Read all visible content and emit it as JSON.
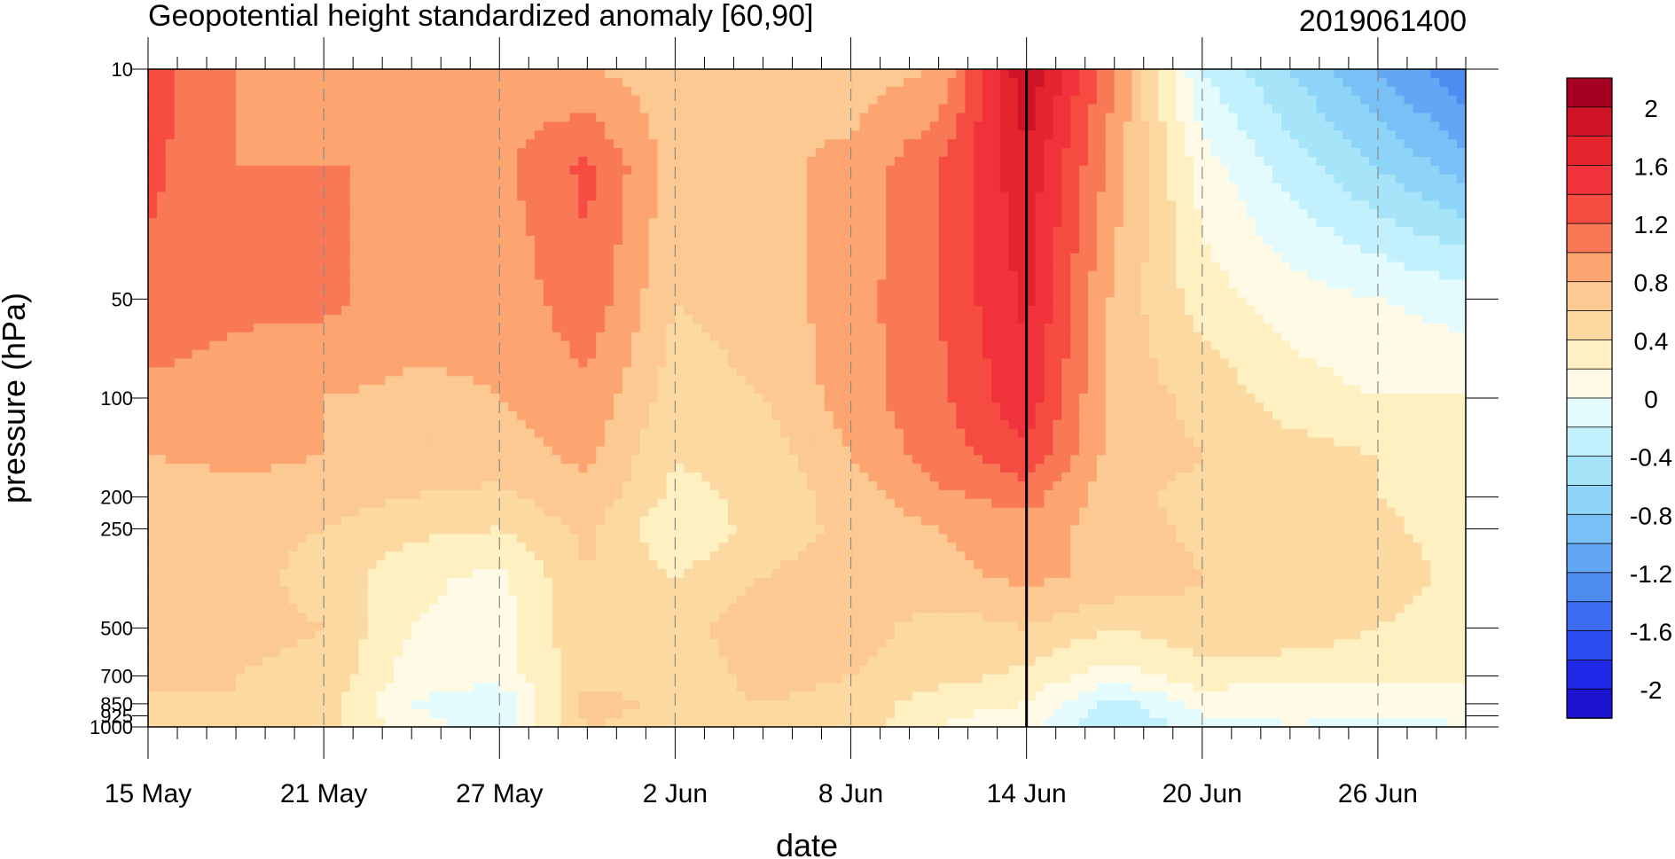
{
  "chart_data": {
    "type": "heatmap",
    "title": "Geopotential height standardized anomaly [60,90]",
    "right_title": "2019061400",
    "xlabel": "date",
    "ylabel": "pressure (hPa)",
    "x_tick_labels": [
      "15 May",
      "21 May",
      "27 May",
      "2 Jun",
      "8 Jun",
      "14 Jun",
      "20 Jun",
      "26 Jun"
    ],
    "x_tick_day_index": [
      0,
      6,
      12,
      18,
      24,
      30,
      36,
      42
    ],
    "x_range_days": [
      0,
      45
    ],
    "y_tick_labels": [
      "10",
      "50",
      "100",
      "200",
      "250",
      "500",
      "700",
      "850",
      "925",
      "1000"
    ],
    "y_tick_values": [
      10,
      50,
      100,
      200,
      250,
      500,
      700,
      850,
      925,
      1000
    ],
    "y_scale": "log",
    "y_range": [
      1000,
      10
    ],
    "current_date_day_index": 30,
    "colorbar": {
      "levels": [
        -2.2,
        -2.0,
        -1.8,
        -1.6,
        -1.4,
        -1.2,
        -1.0,
        -0.8,
        -0.6,
        -0.4,
        -0.2,
        0.0,
        0.2,
        0.4,
        0.6,
        0.8,
        1.0,
        1.2,
        1.4,
        1.6,
        1.8,
        2.0,
        2.2
      ],
      "colors": [
        "#1a12cc",
        "#1e28e6",
        "#2a4cf0",
        "#3d6cf2",
        "#4f8cf2",
        "#62a6f4",
        "#78c0f6",
        "#8ed4f8",
        "#a6e4fa",
        "#c2f0fc",
        "#e4fbfd",
        "#fffae6",
        "#fef0c0",
        "#fdd9a2",
        "#fcc993",
        "#fca571",
        "#f97856",
        "#f54b40",
        "#f0323a",
        "#e6242e",
        "#cf1428",
        "#a50021"
      ],
      "tick_labels": [
        "2",
        "1.6",
        "1.2",
        "0.8",
        "0.4",
        "0",
        "-0.4",
        "-0.8",
        "-1.2",
        "-1.6",
        "-2"
      ],
      "tick_values": [
        2.0,
        1.6,
        1.2,
        0.8,
        0.4,
        0.0,
        -0.4,
        -0.8,
        -1.2,
        -1.6,
        -2.0
      ]
    },
    "grid": {
      "days": [
        0,
        3,
        6,
        9,
        12,
        15,
        18,
        21,
        24,
        27,
        30,
        33,
        36,
        39,
        42,
        45
      ],
      "levels": [
        10,
        20,
        50,
        100,
        150,
        200,
        250,
        350,
        500,
        700,
        850,
        1000
      ],
      "values": [
        [
          1.3,
          1.0,
          0.9,
          1.0,
          0.9,
          0.8,
          0.7,
          0.8,
          0.7,
          0.8,
          2.0,
          1.0,
          -0.2,
          -0.6,
          -1.0,
          -1.4
        ],
        [
          1.25,
          1.0,
          1.0,
          1.0,
          0.95,
          1.25,
          0.7,
          0.75,
          0.85,
          1.2,
          1.75,
          0.9,
          0.1,
          -0.3,
          -0.6,
          -0.9
        ],
        [
          1.15,
          1.05,
          1.05,
          0.9,
          0.85,
          1.15,
          0.6,
          0.7,
          0.9,
          1.2,
          1.65,
          0.75,
          0.3,
          0.1,
          0.0,
          -0.1
        ],
        [
          0.95,
          0.9,
          0.8,
          0.75,
          0.8,
          0.95,
          0.5,
          0.6,
          0.9,
          1.15,
          1.55,
          0.7,
          0.55,
          0.3,
          0.2,
          0.2
        ],
        [
          0.8,
          0.85,
          0.8,
          0.7,
          0.7,
          0.85,
          0.4,
          0.5,
          0.8,
          1.1,
          1.35,
          0.7,
          0.6,
          0.5,
          0.4,
          0.3
        ],
        [
          0.65,
          0.75,
          0.7,
          0.6,
          0.55,
          0.75,
          0.35,
          0.45,
          0.7,
          0.95,
          1.1,
          0.65,
          0.55,
          0.5,
          0.4,
          0.3
        ],
        [
          0.6,
          0.65,
          0.6,
          0.45,
          0.4,
          0.65,
          0.2,
          0.5,
          0.65,
          0.8,
          0.9,
          0.7,
          0.55,
          0.55,
          0.45,
          0.3
        ],
        [
          0.6,
          0.65,
          0.55,
          0.25,
          0.15,
          0.6,
          0.4,
          0.6,
          0.7,
          0.75,
          0.85,
          0.75,
          0.6,
          0.6,
          0.5,
          0.35
        ],
        [
          0.7,
          0.65,
          0.6,
          0.2,
          0.1,
          0.6,
          0.5,
          0.75,
          0.7,
          0.5,
          0.6,
          0.4,
          0.55,
          0.55,
          0.4,
          0.3
        ],
        [
          0.65,
          0.6,
          0.55,
          0.1,
          0.1,
          0.5,
          0.5,
          0.65,
          0.6,
          0.5,
          0.35,
          0.1,
          0.3,
          0.25,
          0.25,
          0.25
        ],
        [
          0.55,
          0.6,
          0.5,
          0.0,
          -0.2,
          0.7,
          0.55,
          0.6,
          0.55,
          0.25,
          0.2,
          -0.3,
          0.1,
          0.05,
          0.05,
          0.05
        ],
        [
          0.45,
          0.5,
          0.45,
          0.1,
          -0.1,
          0.6,
          0.5,
          0.55,
          0.55,
          0.2,
          0.1,
          -0.4,
          -0.1,
          0.0,
          -0.05,
          0.0
        ]
      ]
    }
  }
}
